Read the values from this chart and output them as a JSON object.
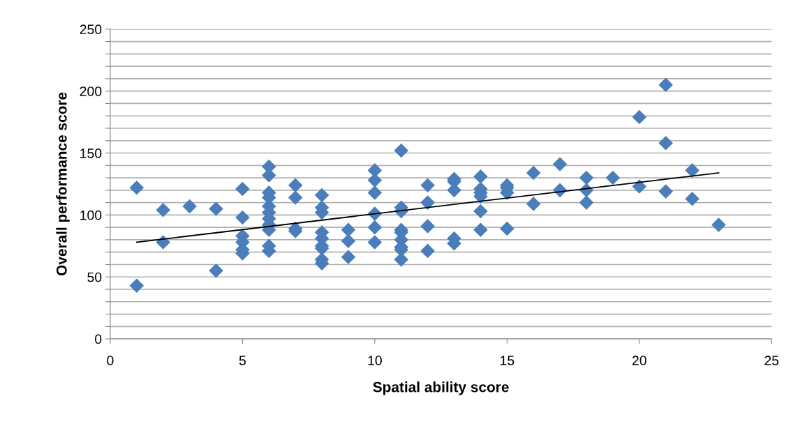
{
  "chart_data": {
    "type": "scatter",
    "xlabel": "Spatial ability score",
    "ylabel": "Overall performance score",
    "xlim": [
      0,
      25
    ],
    "xticks": [
      0,
      5,
      10,
      15,
      20,
      25
    ],
    "ylim": [
      0,
      250
    ],
    "yticks": [
      0,
      {
        "value": 10,
        "label": null
      },
      {
        "value": 20,
        "label": null
      },
      {
        "value": 30,
        "label": null
      },
      {
        "value": 40,
        "label": null
      },
      50,
      {
        "value": 60,
        "label": null
      },
      {
        "value": 70,
        "label": null
      },
      {
        "value": 80,
        "label": null
      },
      {
        "value": 90,
        "label": null
      },
      100,
      {
        "value": 110,
        "label": null
      },
      {
        "value": 120,
        "label": null
      },
      {
        "value": 130,
        "label": null
      },
      {
        "value": 140,
        "label": null
      },
      150,
      {
        "value": 160,
        "label": null
      },
      {
        "value": 170,
        "label": null
      },
      {
        "value": 180,
        "label": null
      },
      {
        "value": 190,
        "label": null
      },
      200,
      {
        "value": 210,
        "label": null
      },
      {
        "value": 220,
        "label": null
      },
      {
        "value": 230,
        "label": null
      },
      {
        "value": 240,
        "label": null
      },
      250
    ],
    "grid": "y",
    "marker": "diamond",
    "series": [
      {
        "color": "#4a7ebb",
        "x": [
          1,
          1,
          2,
          2,
          3,
          4,
          4,
          5,
          5,
          5,
          5,
          5,
          5,
          6,
          6,
          6,
          6,
          6,
          6,
          6,
          6,
          6,
          6,
          6,
          7,
          7,
          7,
          7,
          8,
          8,
          8,
          8,
          8,
          8,
          8,
          8,
          8,
          9,
          9,
          9,
          10,
          10,
          10,
          10,
          10,
          10,
          11,
          11,
          11,
          11,
          11,
          11,
          11,
          11,
          11,
          12,
          12,
          12,
          12,
          13,
          13,
          13,
          13,
          13,
          14,
          14,
          14,
          14,
          14,
          14,
          15,
          15,
          15,
          15,
          16,
          16,
          17,
          17,
          18,
          18,
          18,
          19,
          20,
          20,
          21,
          21,
          21,
          22,
          22,
          23
        ],
        "values": [
          122,
          43,
          104,
          78,
          107,
          105,
          55,
          121,
          98,
          83,
          78,
          72,
          69,
          139,
          132,
          118,
          114,
          107,
          102,
          97,
          92,
          88,
          75,
          71,
          124,
          114,
          89,
          87,
          116,
          106,
          102,
          86,
          81,
          75,
          73,
          64,
          61,
          88,
          79,
          66,
          136,
          128,
          118,
          101,
          90,
          78,
          152,
          106,
          103,
          88,
          86,
          80,
          74,
          72,
          64,
          124,
          110,
          91,
          71,
          129,
          127,
          120,
          81,
          77,
          131,
          121,
          118,
          115,
          103,
          88,
          124,
          122,
          118,
          89,
          134,
          109,
          141,
          120,
          130,
          120,
          110,
          130,
          179,
          123,
          205,
          158,
          119,
          136,
          113,
          92
        ]
      },
      {
        "type": "line",
        "color": "#000000",
        "marker": "none",
        "x": [
          1,
          23
        ],
        "values": [
          78,
          134
        ]
      }
    ]
  }
}
